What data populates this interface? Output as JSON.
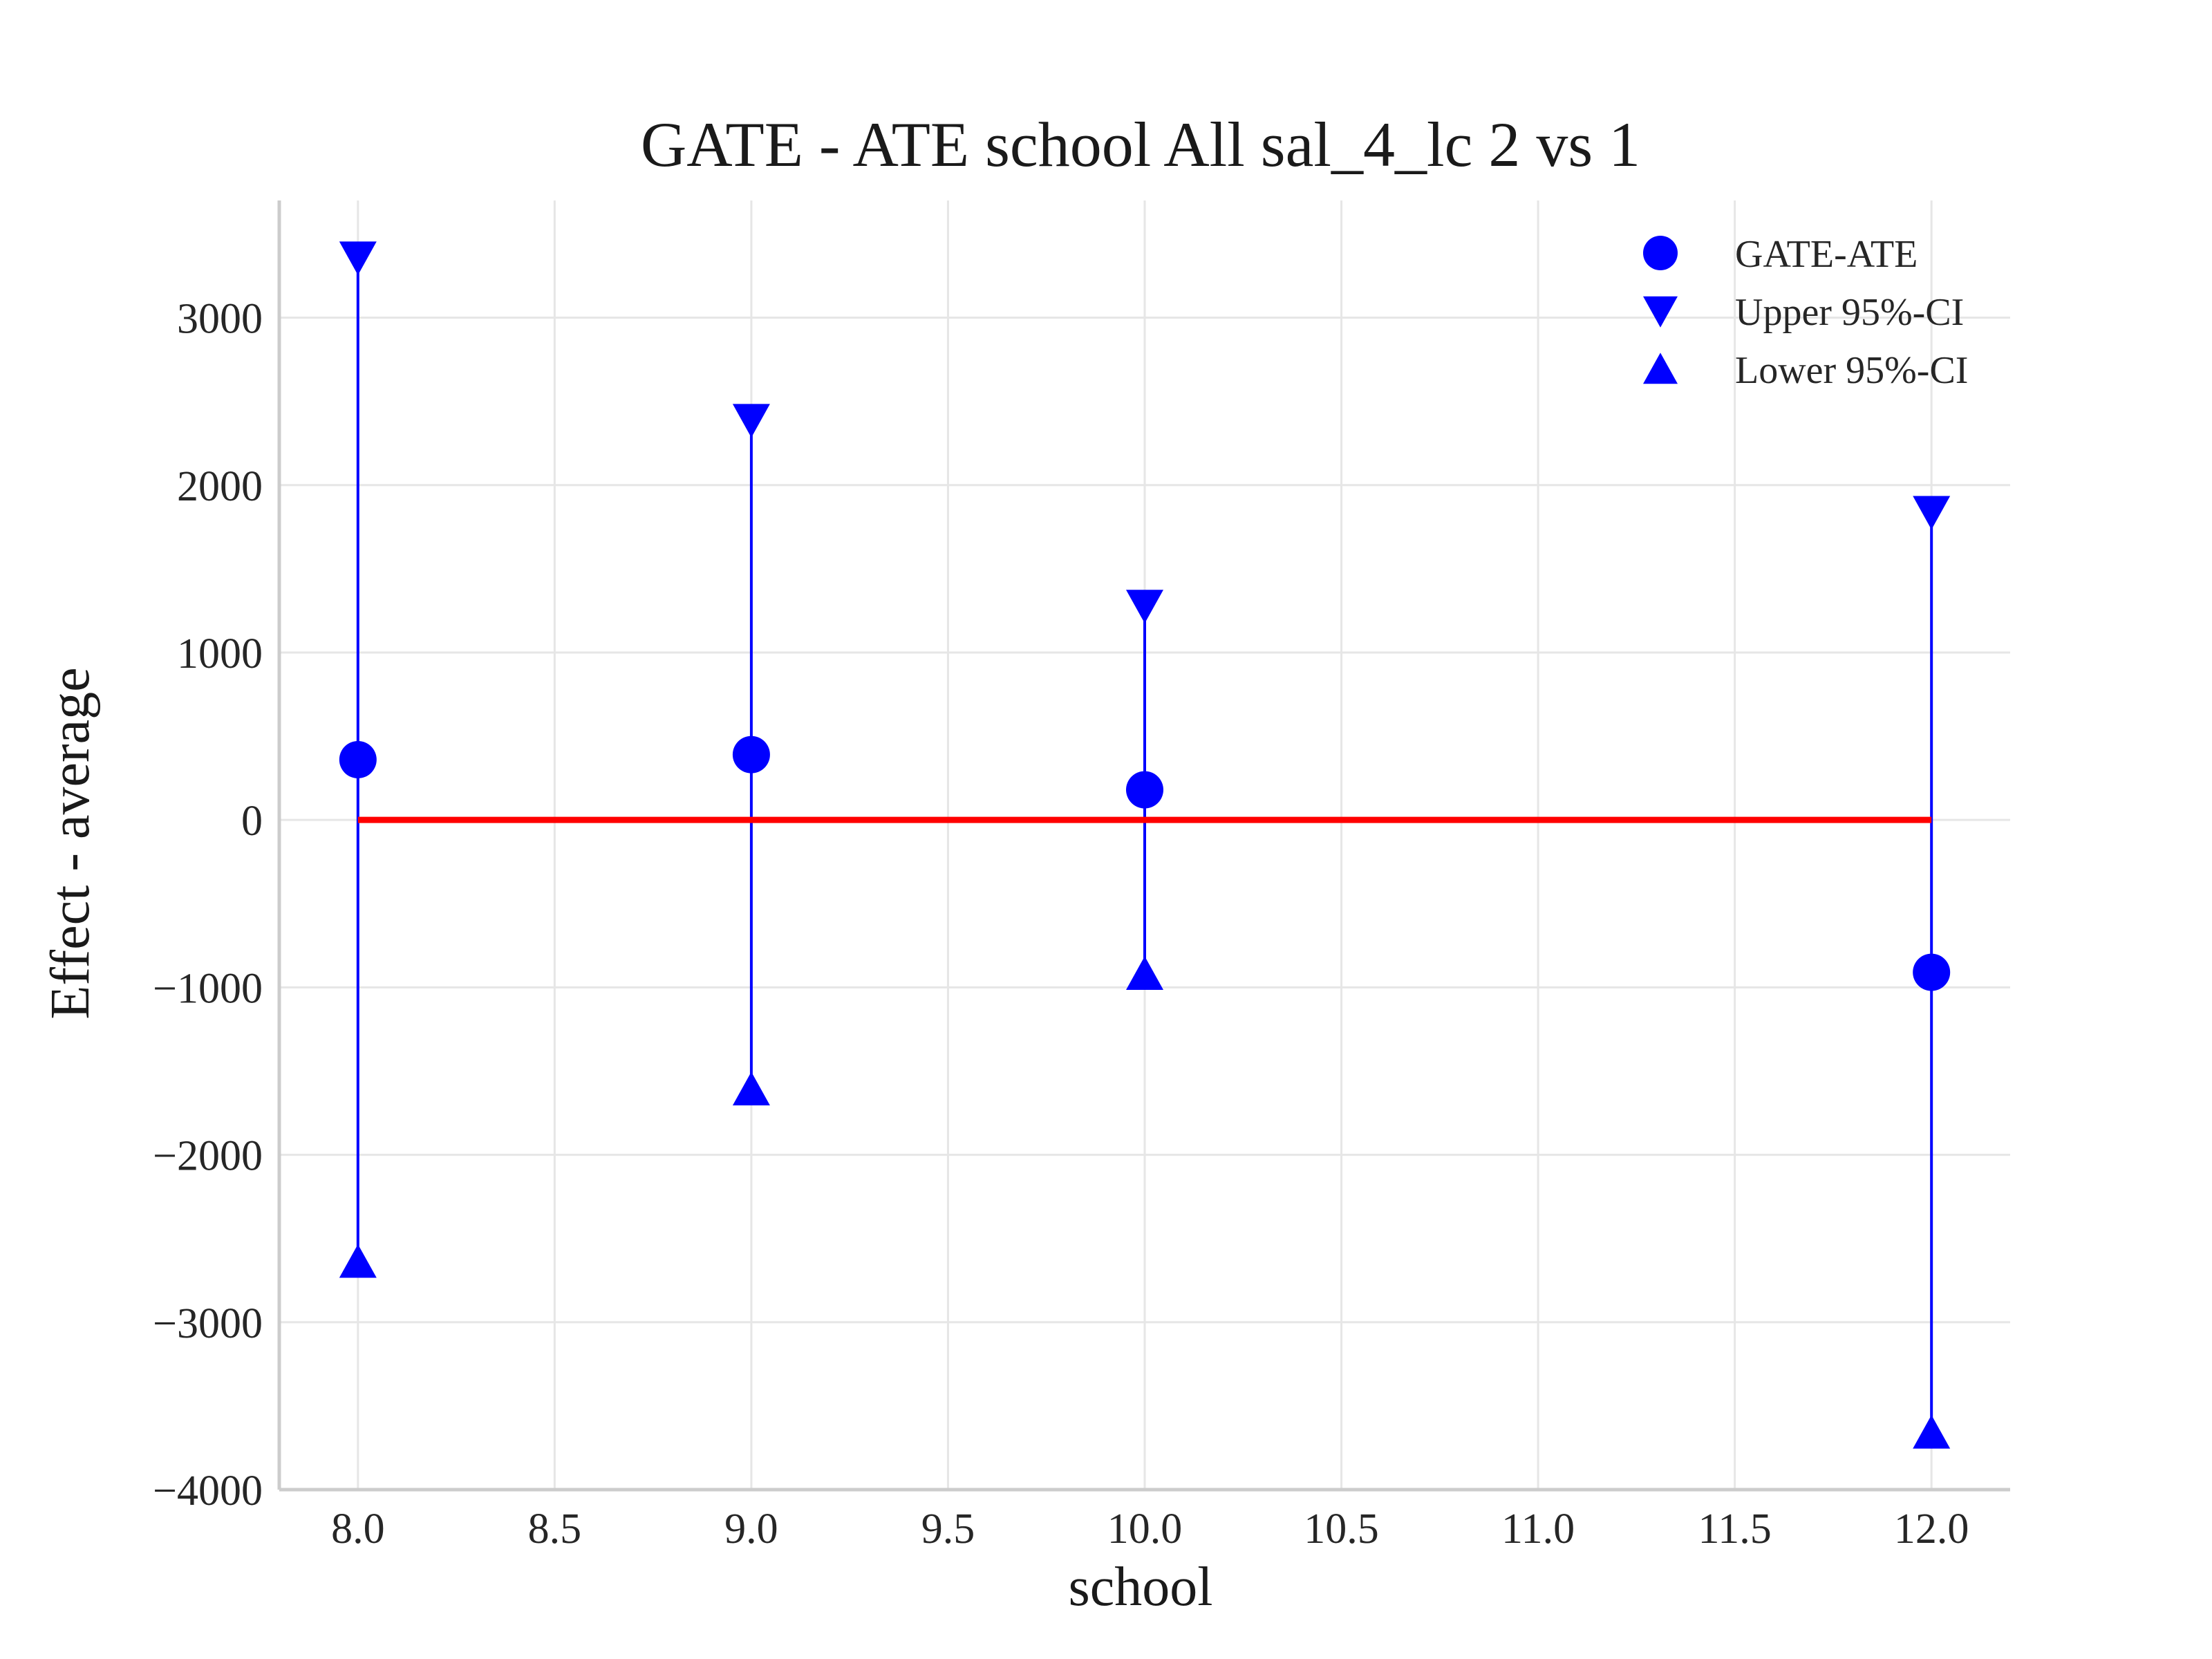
{
  "chart_data": {
    "type": "scatter",
    "title": "GATE - ATE school All sal_4_lc  2 vs 1",
    "xlabel": "school",
    "ylabel": "Effect - average",
    "xlim": [
      7.8,
      12.2
    ],
    "ylim": [
      -4000,
      3700
    ],
    "x_ticks": [
      8.0,
      8.5,
      9.0,
      9.5,
      10.0,
      10.5,
      11.0,
      11.5,
      12.0
    ],
    "x_tick_labels": [
      "8.0",
      "8.5",
      "9.0",
      "9.5",
      "10.0",
      "10.5",
      "11.0",
      "11.5",
      "12.0"
    ],
    "y_ticks": [
      -4000,
      -3000,
      -2000,
      -1000,
      0,
      1000,
      2000,
      3000
    ],
    "y_tick_labels": [
      "−4000",
      "−3000",
      "−2000",
      "−1000",
      "0",
      "1000",
      "2000",
      "3000"
    ],
    "grid": true,
    "legend_position": "top-right",
    "x": [
      8.0,
      9.0,
      10.0,
      12.0
    ],
    "series": [
      {
        "name": "GATE-ATE",
        "marker": "circle",
        "color": "#0000ff",
        "values": [
          360,
          390,
          180,
          -910
        ]
      },
      {
        "name": "Upper 95%-CI",
        "marker": "triangle-down",
        "color": "#0000ff",
        "values": [
          3360,
          2390,
          1280,
          1840
        ]
      },
      {
        "name": "Lower 95%-CI",
        "marker": "triangle-up",
        "color": "#0000ff",
        "values": [
          -2640,
          -1610,
          -920,
          -3660
        ]
      }
    ],
    "reference_line": {
      "y": 0,
      "x_from": 8.0,
      "x_to": 12.0,
      "color": "#ff0000"
    }
  }
}
